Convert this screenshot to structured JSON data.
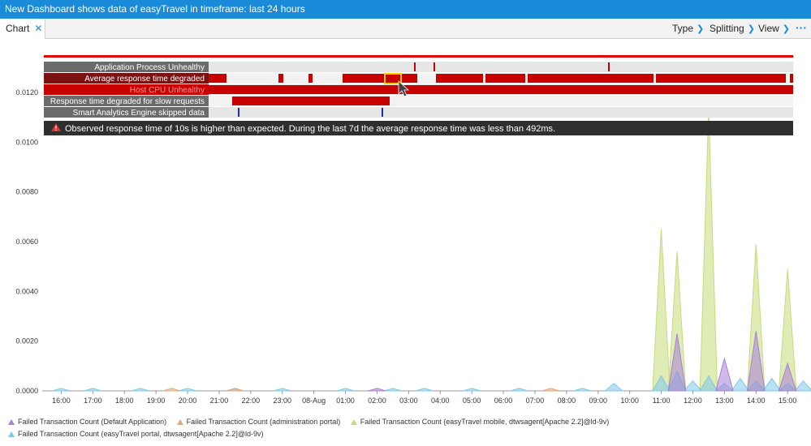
{
  "window": {
    "title": "New Dashboard shows data of easyTravel in timeframe: last 24 hours"
  },
  "tab": {
    "label": "Chart",
    "close_glyph": "✕"
  },
  "toolbar": {
    "type_label": "Type",
    "splitting_label": "Splitting",
    "view_label": "View",
    "more_glyph": "···"
  },
  "events": {
    "rows": [
      {
        "label": "Application Process Unhealthy"
      },
      {
        "label": "Average response time degraded"
      },
      {
        "label": "Host CPU Unhealthy"
      },
      {
        "label": "Response time degraded for slow requests"
      },
      {
        "label": "Smart Analytics Engine skipped data"
      }
    ],
    "tooltip": "Observed response time of 10s is higher than expected. During the last 7d the average response time was less than 492ms."
  },
  "chart_data": {
    "type": "area",
    "x": [
      "15:30",
      "16:00",
      "16:30",
      "17:00",
      "17:30",
      "18:00",
      "18:30",
      "19:00",
      "19:30",
      "20:00",
      "20:30",
      "21:00",
      "21:30",
      "22:00",
      "22:30",
      "23:00",
      "23:30",
      "08-Aug",
      "00:30",
      "01:00",
      "01:30",
      "02:00",
      "02:30",
      "03:00",
      "03:30",
      "04:00",
      "04:30",
      "05:00",
      "05:30",
      "06:00",
      "06:30",
      "07:00",
      "07:30",
      "08:00",
      "08:30",
      "09:00",
      "09:30",
      "10:00",
      "10:30",
      "11:00",
      "11:30",
      "12:00",
      "12:30",
      "13:00",
      "13:30",
      "14:00",
      "14:30",
      "15:00",
      "15:15"
    ],
    "tick_labels": [
      "16:00",
      "17:00",
      "18:00",
      "19:00",
      "20:00",
      "21:00",
      "22:00",
      "23:00",
      "08-Aug",
      "01:00",
      "02:00",
      "03:00",
      "04:00",
      "05:00",
      "06:00",
      "07:00",
      "08:00",
      "09:00",
      "10:00",
      "11:00",
      "12:00",
      "13:00",
      "14:00",
      "15:00"
    ],
    "y_ticks": [
      "0.0000",
      "0.0020",
      "0.0040",
      "0.0060",
      "0.0080",
      "0.0100",
      "0.0120"
    ],
    "ylim": [
      0,
      0.0135
    ],
    "grid": false,
    "legend_position": "bottom",
    "series": [
      {
        "name": "Failed Transaction Count (Default Application)",
        "color": "#a77fd6",
        "values": [
          0,
          0,
          0,
          0,
          0,
          0,
          0,
          0,
          0,
          0,
          0,
          0,
          0,
          0,
          0,
          0,
          0,
          0,
          0,
          0,
          0,
          0.0001,
          0,
          0,
          0,
          0,
          0,
          0,
          0,
          0,
          0,
          0,
          0,
          0,
          0,
          0,
          0,
          0,
          0,
          0,
          0.0023,
          0,
          0,
          0.0013,
          0,
          0.0024,
          0,
          0.0011,
          0
        ]
      },
      {
        "name": "Failed Transaction Count (administration portal)",
        "color": "#e5a67a",
        "values": [
          0,
          0,
          0,
          0,
          0,
          0,
          0,
          0,
          0.0001,
          0,
          0,
          0,
          0.0001,
          0,
          0,
          0,
          0,
          0,
          0,
          0,
          0,
          0,
          0,
          0,
          0,
          0,
          0,
          0,
          0,
          0,
          0,
          0,
          0.0001,
          0,
          0,
          0,
          0,
          0,
          0,
          0,
          0,
          0,
          0,
          0,
          0,
          0,
          0,
          0,
          0
        ]
      },
      {
        "name": "Failed Transaction Count (easyTravel mobile, dtwsagent[Apache 2.2]@ld-9v)",
        "color": "#c5dc7a",
        "values": [
          0,
          0,
          0,
          0,
          0,
          0,
          0,
          0,
          0,
          0,
          0,
          0,
          0,
          0,
          0,
          0,
          0,
          0,
          0,
          0,
          0,
          0,
          0,
          0,
          0,
          0,
          0,
          0,
          0,
          0,
          0,
          0,
          0,
          0,
          0,
          0,
          0,
          0,
          0,
          0.0065,
          0.0056,
          0,
          0.0113,
          0,
          0,
          0.0059,
          0,
          0.0049,
          0
        ]
      },
      {
        "name": "Failed Transaction Count (easyTravel portal, dtwsagent[Apache 2.2]@ld-9v)",
        "color": "#7ec8ea",
        "values": [
          0,
          0.0001,
          0,
          0.0001,
          0,
          0,
          0.0001,
          0,
          0,
          0.0001,
          0,
          0,
          0.0001,
          0,
          0,
          0.0001,
          0,
          0,
          0,
          0.0001,
          0,
          0,
          0.0001,
          0,
          0.0001,
          0,
          0,
          0.0001,
          0,
          0,
          0.0001,
          0,
          0,
          0,
          0.0001,
          0,
          0.0003,
          0,
          0,
          0.0006,
          0.0008,
          0.0004,
          0.0006,
          0.0003,
          0.0005,
          0.0004,
          0.0005,
          0.0003,
          0.0004
        ]
      }
    ]
  }
}
